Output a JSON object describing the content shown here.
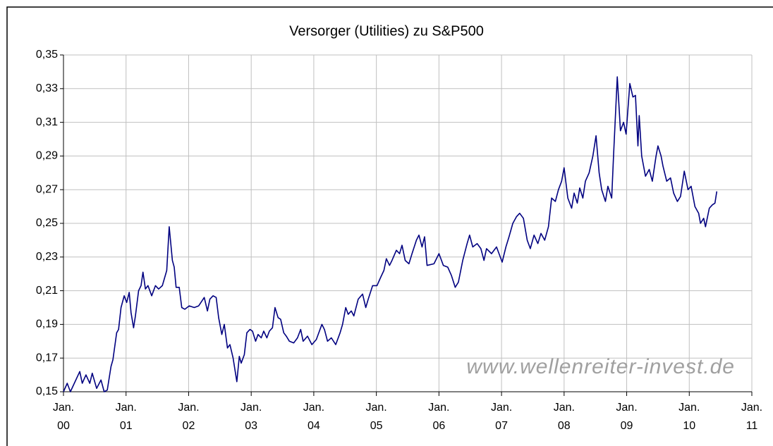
{
  "chart_data": {
    "type": "line",
    "title": "Versorger (Utilities) zu S&P500",
    "annotation": "www.wellenreiter-invest.de",
    "color": "#000080",
    "grid": true,
    "x": [
      2000.0,
      2000.06,
      2000.11,
      2000.26,
      2000.3,
      2000.36,
      2000.42,
      2000.46,
      2000.53,
      2000.6,
      2000.65,
      2000.7,
      2000.76,
      2000.79,
      2000.85,
      2000.88,
      2000.92,
      2000.97,
      2001.01,
      2001.05,
      2001.08,
      2001.12,
      2001.15,
      2001.2,
      2001.24,
      2001.27,
      2001.31,
      2001.35,
      2001.41,
      2001.47,
      2001.52,
      2001.58,
      2001.65,
      2001.69,
      2001.74,
      2001.77,
      2001.8,
      2001.85,
      2001.89,
      2001.94,
      2002.01,
      2002.09,
      2002.16,
      2002.25,
      2002.3,
      2002.34,
      2002.39,
      2002.44,
      2002.48,
      2002.53,
      2002.57,
      2002.62,
      2002.66,
      2002.71,
      2002.77,
      2002.81,
      2002.84,
      2002.89,
      2002.93,
      2002.98,
      2003.02,
      2003.07,
      2003.11,
      2003.16,
      2003.2,
      2003.25,
      2003.29,
      2003.34,
      2003.38,
      2003.43,
      2003.47,
      2003.52,
      2003.56,
      2003.61,
      2003.68,
      2003.74,
      2003.79,
      2003.83,
      2003.9,
      2003.97,
      2004.04,
      2004.13,
      2004.17,
      2004.22,
      2004.28,
      2004.35,
      2004.42,
      2004.46,
      2004.51,
      2004.55,
      2004.6,
      2004.64,
      2004.71,
      2004.78,
      2004.83,
      2004.87,
      2004.94,
      2005.01,
      2005.07,
      2005.12,
      2005.16,
      2005.21,
      2005.25,
      2005.32,
      2005.37,
      2005.41,
      2005.46,
      2005.52,
      2005.57,
      2005.64,
      2005.68,
      2005.73,
      2005.77,
      2005.81,
      2005.92,
      2006.0,
      2006.07,
      2006.14,
      2006.2,
      2006.26,
      2006.31,
      2006.38,
      2006.45,
      2006.49,
      2006.54,
      2006.61,
      2006.67,
      2006.72,
      2006.76,
      2006.84,
      2006.92,
      2007.01,
      2007.07,
      2007.12,
      2007.18,
      2007.24,
      2007.29,
      2007.35,
      2007.41,
      2007.46,
      2007.52,
      2007.58,
      2007.63,
      2007.69,
      2007.75,
      2007.8,
      2007.86,
      2007.91,
      2007.96,
      2008.0,
      2008.06,
      2008.12,
      2008.16,
      2008.21,
      2008.25,
      2008.3,
      2008.34,
      2008.4,
      2008.46,
      2008.51,
      2008.56,
      2008.6,
      2008.66,
      2008.7,
      2008.76,
      2008.79,
      2008.85,
      2008.9,
      2008.95,
      2008.99,
      2009.05,
      2009.1,
      2009.14,
      2009.18,
      2009.2,
      2009.24,
      2009.3,
      2009.36,
      2009.41,
      2009.47,
      2009.5,
      2009.55,
      2009.58,
      2009.64,
      2009.7,
      2009.75,
      2009.81,
      2009.86,
      2009.92,
      2009.98,
      2010.03,
      2010.09,
      2010.15,
      2010.18,
      2010.23,
      2010.26,
      2010.32,
      2010.37,
      2010.41,
      2010.44
    ],
    "values": [
      0.15,
      0.155,
      0.15,
      0.162,
      0.155,
      0.16,
      0.155,
      0.161,
      0.152,
      0.157,
      0.15,
      0.151,
      0.165,
      0.169,
      0.185,
      0.187,
      0.2,
      0.207,
      0.203,
      0.209,
      0.197,
      0.188,
      0.195,
      0.21,
      0.213,
      0.221,
      0.211,
      0.213,
      0.207,
      0.213,
      0.211,
      0.213,
      0.222,
      0.248,
      0.228,
      0.224,
      0.212,
      0.212,
      0.2,
      0.199,
      0.201,
      0.2,
      0.201,
      0.206,
      0.198,
      0.205,
      0.207,
      0.206,
      0.194,
      0.184,
      0.19,
      0.176,
      0.178,
      0.17,
      0.156,
      0.171,
      0.167,
      0.172,
      0.185,
      0.187,
      0.186,
      0.18,
      0.184,
      0.182,
      0.186,
      0.182,
      0.186,
      0.188,
      0.2,
      0.194,
      0.193,
      0.185,
      0.183,
      0.18,
      0.179,
      0.182,
      0.187,
      0.18,
      0.183,
      0.178,
      0.181,
      0.19,
      0.187,
      0.18,
      0.182,
      0.178,
      0.185,
      0.19,
      0.2,
      0.196,
      0.198,
      0.195,
      0.205,
      0.208,
      0.2,
      0.205,
      0.213,
      0.213,
      0.218,
      0.222,
      0.229,
      0.225,
      0.228,
      0.234,
      0.232,
      0.237,
      0.228,
      0.226,
      0.232,
      0.24,
      0.243,
      0.236,
      0.242,
      0.225,
      0.226,
      0.232,
      0.225,
      0.224,
      0.219,
      0.212,
      0.215,
      0.228,
      0.238,
      0.243,
      0.236,
      0.238,
      0.235,
      0.228,
      0.235,
      0.232,
      0.236,
      0.227,
      0.236,
      0.242,
      0.25,
      0.254,
      0.256,
      0.253,
      0.24,
      0.235,
      0.243,
      0.238,
      0.244,
      0.24,
      0.248,
      0.265,
      0.263,
      0.27,
      0.275,
      0.283,
      0.265,
      0.259,
      0.268,
      0.262,
      0.271,
      0.265,
      0.275,
      0.28,
      0.29,
      0.302,
      0.28,
      0.27,
      0.263,
      0.272,
      0.265,
      0.29,
      0.337,
      0.305,
      0.31,
      0.303,
      0.333,
      0.325,
      0.326,
      0.296,
      0.314,
      0.29,
      0.278,
      0.282,
      0.275,
      0.29,
      0.296,
      0.29,
      0.284,
      0.275,
      0.277,
      0.268,
      0.263,
      0.266,
      0.281,
      0.27,
      0.272,
      0.26,
      0.256,
      0.25,
      0.253,
      0.248,
      0.259,
      0.261,
      0.262,
      0.269
    ],
    "xlim": [
      2000,
      2011
    ],
    "xticks": [
      {
        "value": 2000,
        "label": "Jan. 00"
      },
      {
        "value": 2001,
        "label": "Jan. 01"
      },
      {
        "value": 2002,
        "label": "Jan. 02"
      },
      {
        "value": 2003,
        "label": "Jan. 03"
      },
      {
        "value": 2004,
        "label": "Jan. 04"
      },
      {
        "value": 2005,
        "label": "Jan. 05"
      },
      {
        "value": 2006,
        "label": "Jan. 06"
      },
      {
        "value": 2007,
        "label": "Jan. 07"
      },
      {
        "value": 2008,
        "label": "Jan. 08"
      },
      {
        "value": 2009,
        "label": "Jan. 09"
      },
      {
        "value": 2010,
        "label": "Jan. 10"
      },
      {
        "value": 2011,
        "label": "Jan. 11"
      }
    ],
    "ylim": [
      0.15,
      0.35
    ],
    "yticks": [
      {
        "value": 0.15,
        "label": "0,15"
      },
      {
        "value": 0.17,
        "label": "0,17"
      },
      {
        "value": 0.19,
        "label": "0,19"
      },
      {
        "value": 0.21,
        "label": "0,21"
      },
      {
        "value": 0.23,
        "label": "0,23"
      },
      {
        "value": 0.25,
        "label": "0,25"
      },
      {
        "value": 0.27,
        "label": "0,27"
      },
      {
        "value": 0.29,
        "label": "0,29"
      },
      {
        "value": 0.31,
        "label": "0,31"
      },
      {
        "value": 0.33,
        "label": "0,33"
      },
      {
        "value": 0.35,
        "label": "0,35"
      }
    ]
  }
}
